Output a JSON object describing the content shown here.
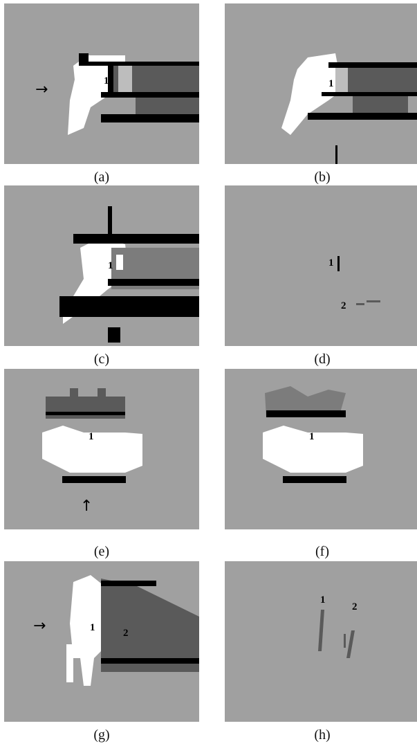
{
  "figure": {
    "colors": {
      "background": "#a0a0a0",
      "white": "#ffffff",
      "black": "#000000",
      "dark_gray": "#5a5a5a",
      "mid_gray": "#7c7c7c",
      "light_gray": "#bdbdbd"
    },
    "panels": [
      {
        "caption": "(a)",
        "labels": [
          "1"
        ],
        "arrow": "→"
      },
      {
        "caption": "(b)",
        "labels": [
          "1"
        ]
      },
      {
        "caption": "(c)",
        "labels": [
          "1"
        ]
      },
      {
        "caption": "(d)",
        "labels": [
          "1",
          "2"
        ]
      },
      {
        "caption": "(e)",
        "labels": [
          "1"
        ],
        "arrow": "↑"
      },
      {
        "caption": "(f)",
        "labels": [
          "1"
        ]
      },
      {
        "caption": "(g)",
        "labels": [
          "1",
          "2"
        ],
        "arrow": "→"
      },
      {
        "caption": "(h)",
        "labels": [
          "1",
          "2"
        ]
      }
    ]
  }
}
